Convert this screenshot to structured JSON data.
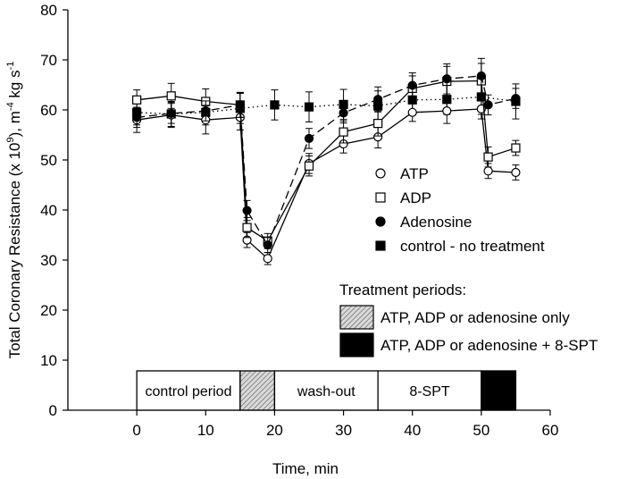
{
  "chart_data": {
    "type": "line",
    "title": "",
    "xlabel": "Time, min",
    "ylabel_parts": [
      "Total Coronary Resistance (x 10",
      "9",
      "), m",
      "-4",
      " kg s",
      "-1"
    ],
    "xlim": [
      -10,
      60
    ],
    "ylim": [
      0,
      80
    ],
    "xticks": [
      0,
      10,
      20,
      30,
      40,
      50,
      60
    ],
    "yticks": [
      0,
      10,
      20,
      30,
      40,
      50,
      60,
      70,
      80
    ],
    "grid": false,
    "legend_placement": "center-right",
    "series": [
      {
        "name": "ATP",
        "marker": "open-circle",
        "line": "solid",
        "x": [
          0,
          5,
          10,
          15,
          16,
          19,
          25,
          30,
          35,
          40,
          45,
          50,
          51,
          55
        ],
        "y": [
          58.0,
          59.0,
          58.0,
          58.5,
          34.0,
          30.3,
          49.3,
          53.2,
          54.6,
          59.5,
          59.8,
          60.2,
          47.8,
          47.5
        ],
        "err": [
          2.5,
          2.5,
          2.8,
          2.5,
          1.5,
          1.2,
          2.0,
          1.8,
          2.2,
          1.8,
          2.5,
          2.0,
          1.5,
          1.5
        ]
      },
      {
        "name": "ADP",
        "marker": "open-square",
        "line": "solid",
        "x": [
          0,
          5,
          10,
          15,
          16,
          19,
          25,
          30,
          35,
          40,
          45,
          50,
          51,
          55
        ],
        "y": [
          62.0,
          62.8,
          61.7,
          61.0,
          36.5,
          33.8,
          48.8,
          55.6,
          57.3,
          64.3,
          65.7,
          65.8,
          50.6,
          52.4
        ],
        "err": [
          2.0,
          2.5,
          2.5,
          2.5,
          2.0,
          1.5,
          2.0,
          2.2,
          2.5,
          2.5,
          3.0,
          3.5,
          2.0,
          1.5
        ]
      },
      {
        "name": "Adenosine",
        "marker": "filled-circle",
        "line": "dashed",
        "x": [
          0,
          5,
          10,
          15,
          16,
          19,
          25,
          30,
          35,
          40,
          45,
          50,
          51,
          55
        ],
        "y": [
          58.5,
          59.3,
          59.8,
          61.0,
          39.9,
          33.0,
          54.3,
          59.4,
          62.1,
          64.9,
          66.2,
          66.8,
          61.0,
          62.3
        ],
        "err": [
          2.0,
          2.0,
          2.0,
          2.5,
          2.0,
          1.5,
          2.0,
          2.0,
          2.5,
          2.5,
          3.0,
          3.5,
          2.0,
          2.0
        ]
      },
      {
        "name": "control - no treatment",
        "marker": "filled-square",
        "line": "dotted",
        "x": [
          0,
          5,
          10,
          15,
          20,
          25,
          30,
          35,
          40,
          45,
          50,
          55
        ],
        "y": [
          59.5,
          59.2,
          59.5,
          60.3,
          61.0,
          60.6,
          61.1,
          60.8,
          62.0,
          62.1,
          62.6,
          61.7
        ],
        "err": [
          2.5,
          2.5,
          2.5,
          3.0,
          3.0,
          3.0,
          3.0,
          3.0,
          3.0,
          3.0,
          3.5,
          3.5
        ]
      }
    ],
    "treatment_legend": {
      "title": "Treatment periods:",
      "items": [
        {
          "label": "ATP, ADP or adenosine only",
          "fill": "hatched"
        },
        {
          "label": "ATP, ADP or adenosine + 8-SPT",
          "fill": "black"
        }
      ]
    },
    "periods": [
      {
        "label": "control period",
        "start": 0,
        "end": 15,
        "fill": "white"
      },
      {
        "label": "",
        "start": 15,
        "end": 20,
        "fill": "hatched"
      },
      {
        "label": "wash-out",
        "start": 20,
        "end": 35,
        "fill": "white"
      },
      {
        "label": "8-SPT",
        "start": 35,
        "end": 50,
        "fill": "white"
      },
      {
        "label": "",
        "start": 50,
        "end": 55,
        "fill": "black"
      }
    ]
  }
}
